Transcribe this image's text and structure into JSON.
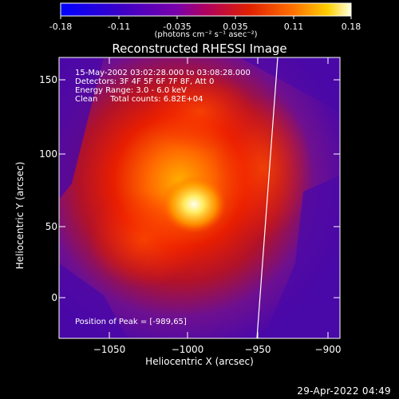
{
  "colorbar": {
    "ticks": [
      "-0.18",
      "-0.11",
      "-0.035",
      "0.035",
      "0.11",
      "0.18"
    ],
    "unit_label": "(photons cm⁻² s⁻¹ asec⁻²)",
    "stops": [
      "#0000ff",
      "#3a00c8",
      "#7a00aa",
      "#b00060",
      "#e02000",
      "#ff7000",
      "#ffd000",
      "#ffffe0"
    ]
  },
  "plot": {
    "title": "Reconstructed RHESSI Image",
    "xlabel": "Heliocentric X (arcsec)",
    "ylabel": "Heliocentric Y (arcsec)",
    "xticks": [
      "−1050",
      "−1000",
      "−950",
      "−900"
    ],
    "yticks": [
      "150",
      "100",
      "50",
      "0"
    ],
    "xlim": [
      -1085,
      -885
    ],
    "ylim": [
      -27,
      163
    ],
    "info_lines": {
      "time": "15-May-2002 03:02:28.000 to 03:08:28.000",
      "detectors": "Detectors: 3F 4F 5F 6F 7F 8F, Att 0",
      "energy": "Energy Range: 3.0 - 6.0 keV",
      "clean": "Clean     Total counts: 6.82E+04"
    },
    "peak_label": "Position of Peak = [-989,65]",
    "peak_position": [
      -989,
      65
    ]
  },
  "footer_timestamp": "29-Apr-2022 04:49"
}
